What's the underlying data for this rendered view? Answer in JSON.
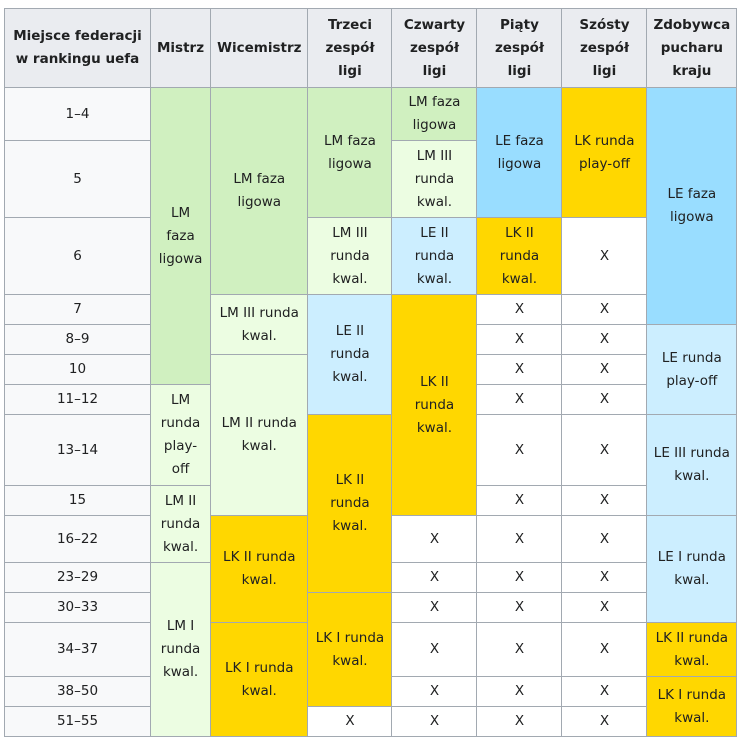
{
  "table": {
    "header": [
      "Miejsce federacji w rankingu uefa",
      "Mistrz",
      "Wicemistrz",
      "Trzeci zespół ligi",
      "Czwarty zespół ligi",
      "Piąty zespół ligi",
      "Szósty zespół ligi",
      "Zdobywca pucharu kraju"
    ],
    "rows": [
      [
        "1–4",
        "LM faza ligowa",
        "LM faza ligowa",
        "LM faza ligowa",
        "LM faza ligowa",
        "LE faza ligowa",
        "LK runda play-off",
        "LE faza ligowa"
      ],
      [
        "5",
        "LM III runda kwal."
      ],
      [
        "6",
        "LM III runda kwal.",
        "LE II runda kwal.",
        "LK II runda kwal.",
        "X"
      ],
      [
        "7",
        "LM III runda kwal.",
        "LE II runda kwal.",
        "LK II runda kwal.",
        "X",
        "X"
      ],
      [
        "8–9",
        "X",
        "X",
        "LE runda play-off"
      ],
      [
        "10",
        "LM II runda kwal.",
        "X",
        "X"
      ],
      [
        "11–12",
        "LM runda play-off",
        "X",
        "X"
      ],
      [
        "13–14",
        "LK II runda kwal.",
        "X",
        "X",
        "LE III runda kwal."
      ],
      [
        "15",
        "LM II runda kwal.",
        "X",
        "X"
      ],
      [
        "16–22",
        "LK II runda kwal.",
        "X",
        "X",
        "X",
        "LE I runda kwal."
      ],
      [
        "23–29",
        "LM I runda kwal.",
        "X",
        "X",
        "X"
      ],
      [
        "30–33",
        "LK I runda kwal.",
        "X",
        "X",
        "X"
      ],
      [
        "34–37",
        "LK I runda kwal.",
        "X",
        "X",
        "X",
        "LK II runda kwal."
      ],
      [
        "38–50",
        "X",
        "X",
        "X",
        "LK I runda kwal."
      ],
      [
        "51–55",
        "X",
        "X",
        "X",
        "X"
      ]
    ]
  }
}
